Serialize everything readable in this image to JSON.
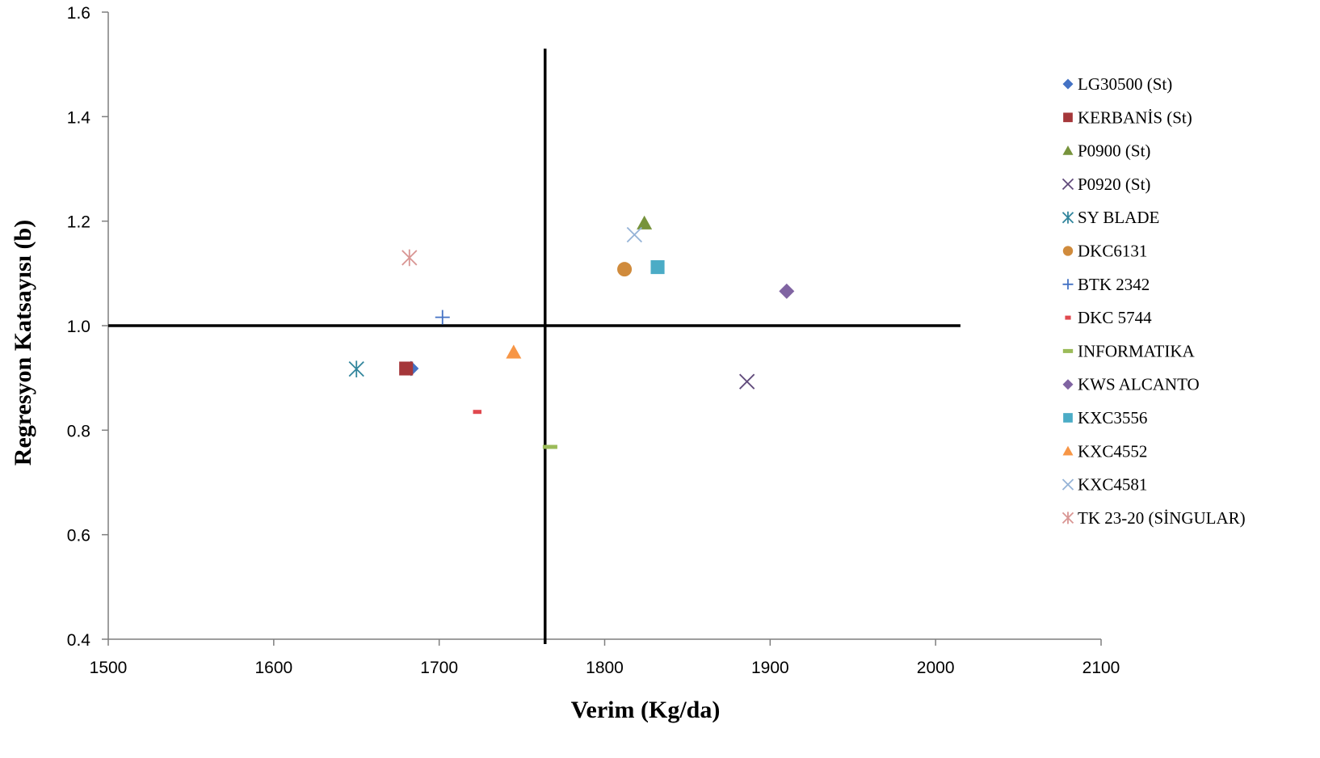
{
  "chart_data": {
    "type": "scatter",
    "xlabel": "Verim (Kg/da)",
    "ylabel": "Regresyon Katsayısı (b)",
    "xlim": [
      1500,
      2100
    ],
    "ylim": [
      0.4,
      1.6
    ],
    "x_ticks": [
      "1500",
      "1600",
      "1700",
      "1800",
      "1900",
      "2000",
      "2100"
    ],
    "y_ticks": [
      "0.4",
      "0.6",
      "0.8",
      "1.0",
      "1.2",
      "1.4",
      "1.6"
    ],
    "grid": false,
    "legend_position": "right",
    "reference_lines": {
      "x_mean": 1764,
      "y": 1.0
    },
    "series": [
      {
        "name": "LG30500 (St)",
        "x": 1683,
        "y": 0.918,
        "marker": "diamond",
        "color": "#4472C4"
      },
      {
        "name": "KERBANİS (St)",
        "x": 1680,
        "y": 0.918,
        "marker": "square",
        "color": "#A5373A"
      },
      {
        "name": "P0900 (St)",
        "x": 1824,
        "y": 1.196,
        "marker": "triangle",
        "color": "#77933C"
      },
      {
        "name": "P0920 (St)",
        "x": 1886,
        "y": 0.893,
        "marker": "x",
        "color": "#604A7B"
      },
      {
        "name": "SY BLADE",
        "x": 1650,
        "y": 0.917,
        "marker": "asterisk",
        "color": "#31859C"
      },
      {
        "name": "DKC6131",
        "x": 1812,
        "y": 1.108,
        "marker": "circle",
        "color": "#D08B3C"
      },
      {
        "name": "BTK 2342",
        "x": 1702,
        "y": 1.016,
        "marker": "plus",
        "color": "#4472C4"
      },
      {
        "name": "DKC 5744",
        "x": 1723,
        "y": 0.835,
        "marker": "dash",
        "color": "#E0494F"
      },
      {
        "name": "INFORMATIKA",
        "x": 1767,
        "y": 0.768,
        "marker": "dash-long",
        "color": "#9BBB59"
      },
      {
        "name": "KWS ALCANTO",
        "x": 1910,
        "y": 1.066,
        "marker": "diamond",
        "color": "#8064A2"
      },
      {
        "name": "KXC3556",
        "x": 1832,
        "y": 1.112,
        "marker": "square",
        "color": "#4BACC6"
      },
      {
        "name": "KXC4552",
        "x": 1745,
        "y": 0.949,
        "marker": "triangle",
        "color": "#F79646"
      },
      {
        "name": "KXC4581",
        "x": 1818,
        "y": 1.174,
        "marker": "x",
        "color": "#95B3D7"
      },
      {
        "name": "TK 23-20 (SİNGULAR)",
        "x": 1682,
        "y": 1.13,
        "marker": "asterisk",
        "color": "#D99694"
      }
    ]
  }
}
